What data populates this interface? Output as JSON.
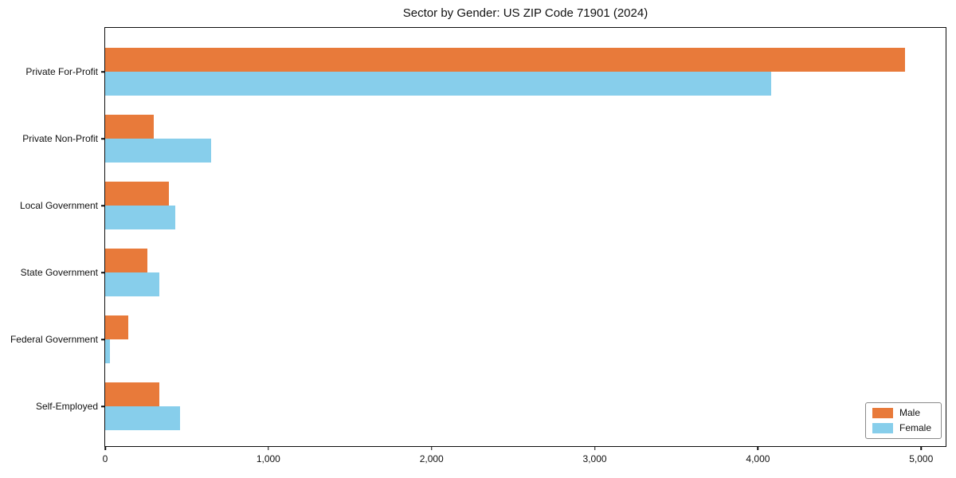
{
  "title": "Sector by Gender: US ZIP Code 71901 (2024)",
  "chart_data": {
    "type": "bar",
    "orientation": "horizontal",
    "title": "Sector by Gender: US ZIP Code 71901 (2024)",
    "categories": [
      "Private For-Profit",
      "Private Non-Profit",
      "Local Government",
      "State Government",
      "Federal Government",
      "Self-Employed"
    ],
    "series": [
      {
        "name": "Male",
        "color": "#e87a3a",
        "values": [
          4900,
          300,
          390,
          260,
          140,
          330
        ]
      },
      {
        "name": "Female",
        "color": "#87ceeb",
        "values": [
          4080,
          650,
          430,
          330,
          30,
          460
        ]
      }
    ],
    "xlabel": "",
    "ylabel": "",
    "xlim": [
      0,
      5150
    ],
    "x_ticks": [
      0,
      1000,
      2000,
      3000,
      4000,
      5000
    ],
    "x_tick_labels": [
      "0",
      "1,000",
      "2,000",
      "3,000",
      "4,000",
      "5,000"
    ],
    "legend_position": "lower right",
    "grid": false,
    "frame": "full-box"
  }
}
